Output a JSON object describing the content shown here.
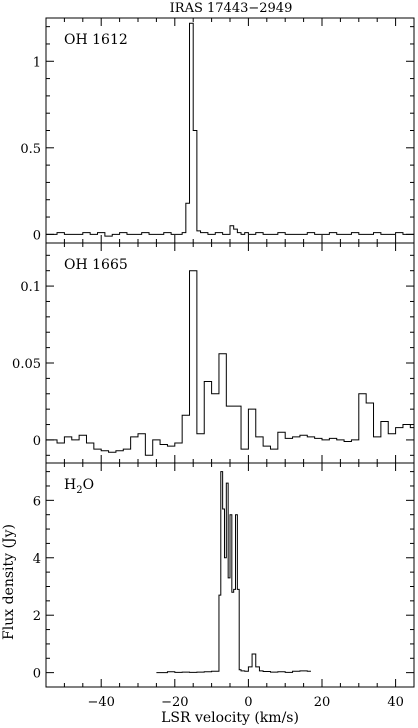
{
  "figure": {
    "title": "IRAS 17443−2949",
    "xlabel": "LSR velocity (km/s)",
    "ylabel": "Flux density (Jy)",
    "xlim": [
      -55,
      45
    ],
    "xticks_major": [
      -40,
      -20,
      0,
      20,
      40
    ],
    "xtick_labels": [
      "−40",
      "−20",
      "0",
      "20",
      "40"
    ],
    "xticks_minor_step": 5,
    "line_color": "#000000",
    "background": "#ffffff",
    "grid": false,
    "legend": "none"
  },
  "chart_data": [
    {
      "type": "line",
      "drawstyle": "steps",
      "label": "OH 1612",
      "ylim": [
        -0.05,
        1.25
      ],
      "yticks_major": [
        0,
        0.5,
        1
      ],
      "ytick_labels": [
        "0",
        "0.5",
        "1"
      ],
      "yticks_minor_step": 0.1,
      "series": [
        {
          "x": [
            -55,
            -52,
            -50,
            -48,
            -45,
            -43,
            -41,
            -39,
            -37,
            -35,
            -33,
            -31,
            -29,
            -27,
            -25,
            -23,
            -21,
            -19,
            -18,
            -17,
            -16,
            -15,
            -14,
            -13,
            -11,
            -9,
            -7,
            -6,
            -5,
            -4,
            -3,
            -2,
            -1,
            0,
            2,
            4,
            6,
            8,
            10,
            12,
            14,
            16,
            18,
            20,
            22,
            24,
            26,
            28,
            30,
            32,
            34,
            36,
            38,
            40,
            42,
            44
          ],
          "y": [
            0.0,
            0.01,
            0.0,
            0.0,
            0.01,
            0.0,
            0.01,
            -0.01,
            0.0,
            0.01,
            0.0,
            0.0,
            0.01,
            0.0,
            0.0,
            0.01,
            0.0,
            0.0,
            0.01,
            0.18,
            1.22,
            0.6,
            0.02,
            0.01,
            0.0,
            0.01,
            0.0,
            0.0,
            0.05,
            0.03,
            0.01,
            0.0,
            0.01,
            0.0,
            0.01,
            0.0,
            0.0,
            0.01,
            0.0,
            0.0,
            0.0,
            0.01,
            0.0,
            0.0,
            0.01,
            0.0,
            0.0,
            0.01,
            0.0,
            0.0,
            0.01,
            0.0,
            0.0,
            0.01,
            0.0,
            0.0
          ]
        }
      ]
    },
    {
      "type": "line",
      "drawstyle": "steps",
      "label": "OH 1665",
      "ylim": [
        -0.015,
        0.128
      ],
      "yticks_major": [
        0,
        0.05,
        0.1
      ],
      "ytick_labels": [
        "0",
        "0.05",
        "0.1"
      ],
      "yticks_minor_step": 0.01,
      "series": [
        {
          "x": [
            -55,
            -52,
            -50,
            -48,
            -46,
            -44,
            -42,
            -40,
            -38,
            -36,
            -34,
            -32,
            -30,
            -28,
            -26,
            -24,
            -22,
            -20,
            -18,
            -16,
            -14,
            -12,
            -10,
            -8,
            -6,
            -4,
            -2,
            0,
            2,
            4,
            6,
            8,
            10,
            12,
            14,
            16,
            18,
            20,
            22,
            24,
            26,
            28,
            30,
            32,
            34,
            36,
            38,
            40,
            42,
            44
          ],
          "y": [
            0.0,
            -0.002,
            0.002,
            0.0,
            0.003,
            -0.002,
            -0.006,
            -0.007,
            -0.008,
            -0.007,
            -0.006,
            0.002,
            0.004,
            -0.01,
            0.0,
            -0.003,
            -0.004,
            -0.002,
            0.016,
            0.11,
            0.004,
            0.038,
            0.03,
            0.056,
            0.022,
            0.022,
            -0.006,
            0.02,
            0.002,
            -0.004,
            -0.006,
            0.005,
            0.001,
            0.002,
            0.003,
            0.002,
            0.001,
            0.0,
            0.001,
            0.0,
            -0.001,
            0.0,
            0.03,
            0.024,
            0.002,
            0.012,
            0.004,
            0.008,
            0.01,
            0.008
          ]
        }
      ]
    },
    {
      "type": "line",
      "drawstyle": "steps",
      "label": "H2O",
      "ylim": [
        -0.5,
        7.3
      ],
      "yticks_major": [
        0,
        2,
        4,
        6
      ],
      "ytick_labels": [
        "0",
        "2",
        "4",
        "6"
      ],
      "yticks_minor_step": 0.5,
      "series": [
        {
          "x": [
            -25,
            -22,
            -20,
            -18,
            -16,
            -14,
            -12,
            -10,
            -8,
            -7.5,
            -7,
            -6.5,
            -6,
            -5.5,
            -5,
            -4.5,
            -4,
            -3.5,
            -3,
            -2.5,
            -2,
            -1,
            0,
            1,
            2,
            3,
            4,
            6,
            8,
            10,
            12,
            14,
            16
          ],
          "y": [
            0.0,
            0.03,
            0.01,
            0.02,
            0.01,
            0.02,
            0.03,
            0.05,
            2.7,
            7.0,
            5.7,
            4.0,
            6.6,
            3.3,
            5.5,
            2.8,
            2.9,
            5.5,
            2.9,
            0.1,
            0.06,
            0.05,
            0.2,
            0.65,
            0.2,
            0.06,
            0.04,
            0.02,
            0.03,
            0.01,
            0.05,
            0.06,
            0.05
          ]
        }
      ]
    }
  ]
}
